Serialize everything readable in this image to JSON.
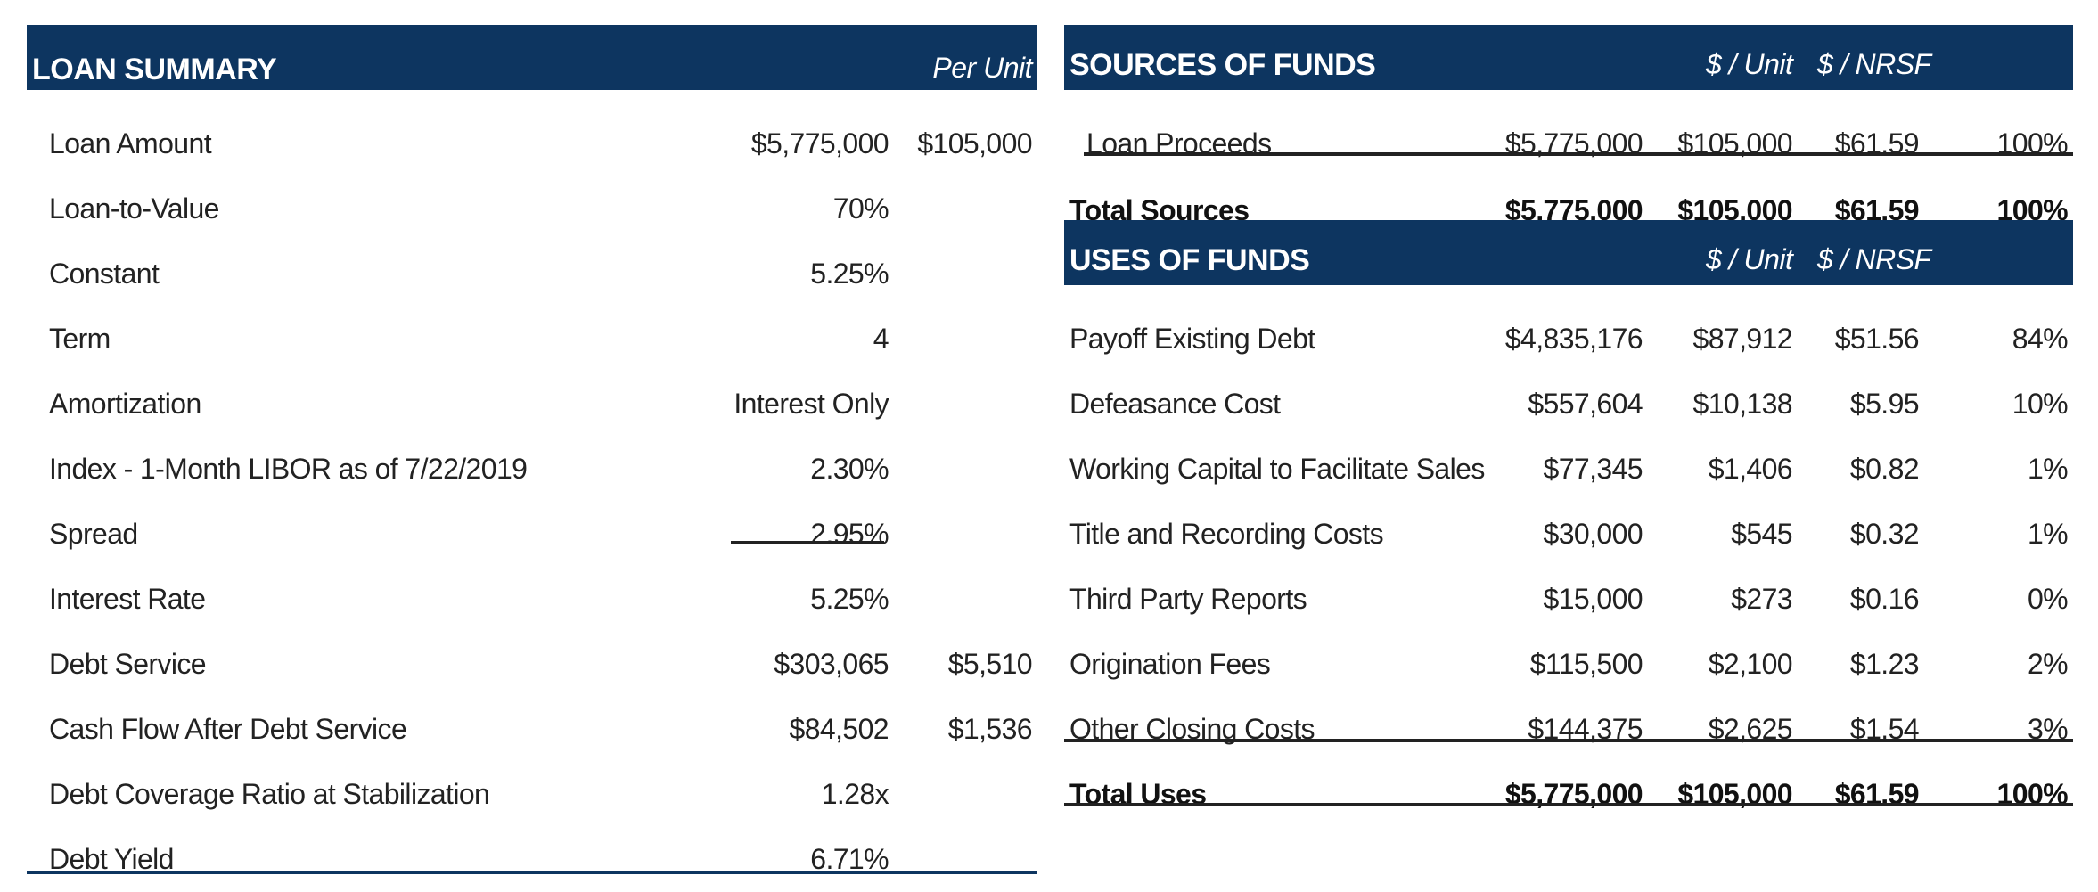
{
  "loan_summary": {
    "title": "LOAN SUMMARY",
    "col_header": "Per Unit",
    "rows": [
      {
        "label": "Loan Amount",
        "value": "$5,775,000",
        "per_unit": "$105,000"
      },
      {
        "label": "Loan-to-Value",
        "value": "70%",
        "per_unit": ""
      },
      {
        "label": "Constant",
        "value": "5.25%",
        "per_unit": ""
      },
      {
        "label": "Term",
        "value": "4",
        "per_unit": ""
      },
      {
        "label": "Amortization",
        "value": "Interest Only",
        "per_unit": ""
      },
      {
        "label": "Index - 1-Month LIBOR as of 7/22/2019",
        "value": "2.30%",
        "per_unit": ""
      },
      {
        "label": "Spread",
        "value": "2.95%",
        "per_unit": ""
      },
      {
        "label": "Interest Rate",
        "value": "5.25%",
        "per_unit": ""
      },
      {
        "label": "Debt Service",
        "value": "$303,065",
        "per_unit": "$5,510"
      },
      {
        "label": "Cash Flow After Debt Service",
        "value": "$84,502",
        "per_unit": "$1,536"
      },
      {
        "label": "Debt Coverage Ratio at Stabilization",
        "value": "1.28x",
        "per_unit": ""
      },
      {
        "label": "Debt Yield",
        "value": "6.71%",
        "per_unit": ""
      }
    ]
  },
  "sources": {
    "title": "SOURCES OF FUNDS",
    "col_unit": "$ / Unit",
    "col_nrsf": "$ / NRSF",
    "rows": [
      {
        "label": "Loan Proceeds",
        "amount": "$5,775,000",
        "unit": "$105,000",
        "nrsf": "$61.59",
        "pct": "100%"
      }
    ],
    "total": {
      "label": "Total Sources",
      "amount": "$5,775,000",
      "unit": "$105,000",
      "nrsf": "$61.59",
      "pct": "100%"
    }
  },
  "uses": {
    "title": "USES OF FUNDS",
    "col_unit": "$ / Unit",
    "col_nrsf": "$ / NRSF",
    "rows": [
      {
        "label": "Payoff Existing Debt",
        "amount": "$4,835,176",
        "unit": "$87,912",
        "nrsf": "$51.56",
        "pct": "84%"
      },
      {
        "label": "Defeasance Cost",
        "amount": "$557,604",
        "unit": "$10,138",
        "nrsf": "$5.95",
        "pct": "10%"
      },
      {
        "label": "Working Capital to Facilitate Sales",
        "amount": "$77,345",
        "unit": "$1,406",
        "nrsf": "$0.82",
        "pct": "1%"
      },
      {
        "label": "Title and Recording Costs",
        "amount": "$30,000",
        "unit": "$545",
        "nrsf": "$0.32",
        "pct": "1%"
      },
      {
        "label": "Third Party Reports",
        "amount": "$15,000",
        "unit": "$273",
        "nrsf": "$0.16",
        "pct": "0%"
      },
      {
        "label": "Origination Fees",
        "amount": "$115,500",
        "unit": "$2,100",
        "nrsf": "$1.23",
        "pct": "2%"
      },
      {
        "label": "Other Closing Costs",
        "amount": "$144,375",
        "unit": "$2,625",
        "nrsf": "$1.54",
        "pct": "3%"
      }
    ],
    "total": {
      "label": "Total Uses",
      "amount": "$5,775,000",
      "unit": "$105,000",
      "nrsf": "$61.59",
      "pct": "100%"
    }
  },
  "colors": {
    "header_bg": "#0d3560",
    "header_text": "#ffffff",
    "rule": "#222222"
  }
}
